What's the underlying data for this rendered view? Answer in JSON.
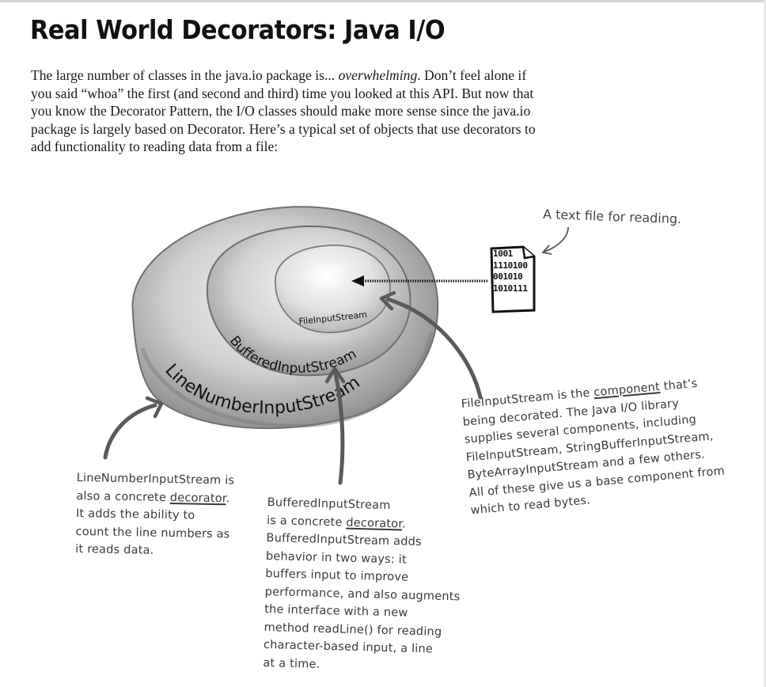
{
  "title": "Real World Decorators: Java I/O",
  "intro": {
    "before_em": "The large number of classes in the java.io package is... ",
    "em": "overwhelming",
    "after_em": ". Don’t feel alone if you said “whoa” the first (and second and third) time you looked at this API. But now that you know the Decorator Pattern, the I/O classes should make more sense since the java.io package is largely based on Decorator.  Here’s a typical set of objects that use decorators to add functionality to reading data from a file:"
  },
  "diagram": {
    "outer_label": "LineNumberInputStream",
    "middle_label": "BufferedInputStream",
    "inner_label": "FileInputStream",
    "file_label": "A text file for reading.",
    "file_bits": [
      "1001",
      "1110100",
      "001010",
      "1010111"
    ]
  },
  "notes": {
    "line_number": {
      "lines": [
        "LineNumberInputStream is",
        "also a concrete ",
        "It adds the ability to",
        "count the line numbers as",
        "it reads data."
      ],
      "keyword": "decorator",
      "after_keyword": "."
    },
    "buffered": {
      "lines": [
        "BufferedInputStream",
        "is a concrete ",
        "BufferedInputStream adds",
        "behavior in two ways: it",
        "buffers input to improve",
        "performance, and also augments",
        "the interface with a new",
        "method readLine() for reading",
        "character-based input, a line",
        "at a time."
      ],
      "keyword": "decorator",
      "after_keyword": "."
    },
    "file_input": {
      "line1_before": "FileInputStream is the ",
      "keyword": "component",
      "line1_after": " that’s",
      "lines": [
        "being decorated. The Java I/O library",
        "supplies several components, including",
        "FileInputStream, StringBufferInputStream,",
        "ByteArrayInputStream and a few others.",
        "All of these give us a base component from",
        "which to read bytes."
      ]
    }
  }
}
